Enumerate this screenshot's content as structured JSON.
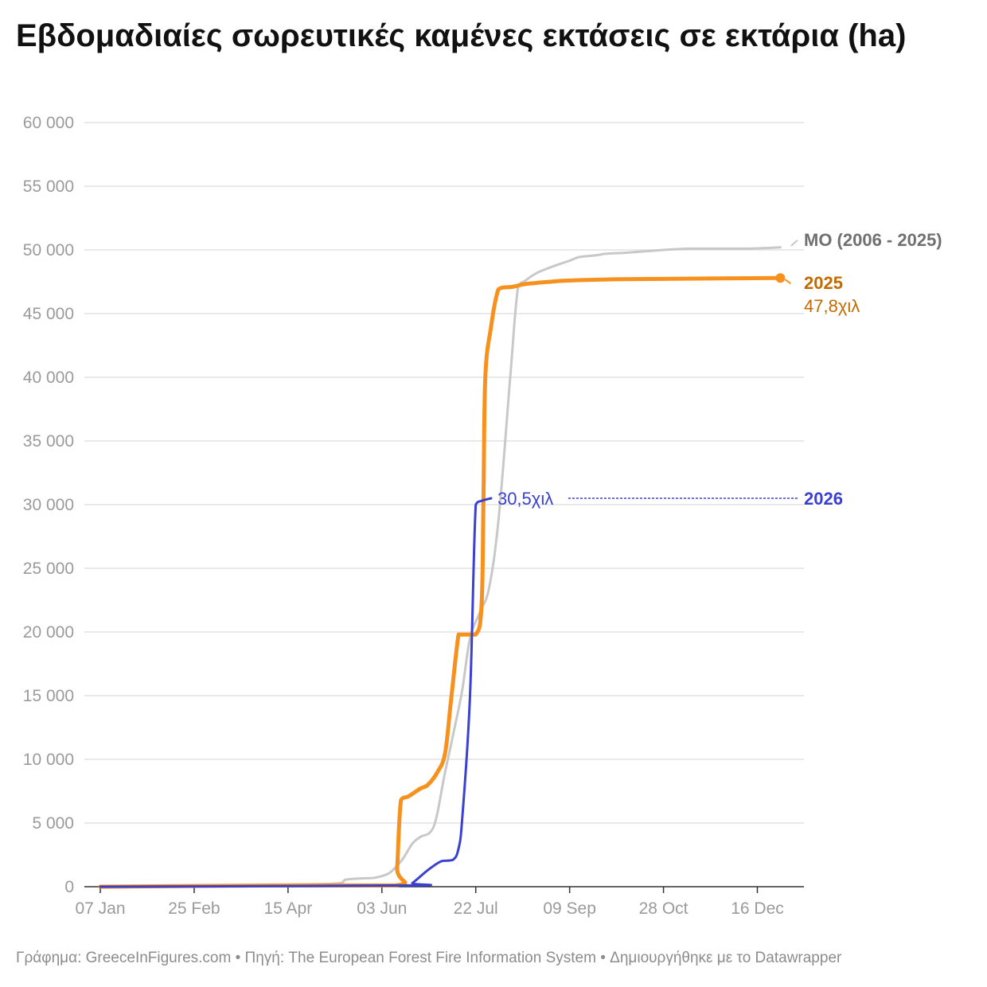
{
  "title": "Εβδομαδιαίες σωρευτικές καμένες εκτάσεις σε εκτάρια (ha)",
  "footer": "Γράφημα: GreeceInFigures.com • Πηγή: The European Forest Fire Information System • Δημιουργήθηκε με το Datawrapper",
  "colors": {
    "avg": "#c8c8c8",
    "avg_label": "#707070",
    "y2025": "#f6911e",
    "y2025_label": "#c26a00",
    "y2026": "#3a40d0",
    "grid": "#e2e2e2",
    "tick": "#9a9a9a",
    "axis": "#333333"
  },
  "chart_data": {
    "type": "line",
    "title": "Εβδομαδιαίες σωρευτικές καμένες εκτάσεις σε εκτάρια (ha)",
    "x_unit": "day of year",
    "x_ticks": [
      {
        "day": 7,
        "label": "07 Jan"
      },
      {
        "day": 56,
        "label": "25 Feb"
      },
      {
        "day": 105,
        "label": "15 Apr"
      },
      {
        "day": 154,
        "label": "03 Jun"
      },
      {
        "day": 203,
        "label": "22 Jul"
      },
      {
        "day": 252,
        "label": "09 Sep"
      },
      {
        "day": 301,
        "label": "28 Oct"
      },
      {
        "day": 350,
        "label": "16 Dec"
      }
    ],
    "y_ticks": [
      {
        "value": 0,
        "label": "0"
      },
      {
        "value": 5000,
        "label": "5 000"
      },
      {
        "value": 10000,
        "label": "10 000"
      },
      {
        "value": 15000,
        "label": "15 000"
      },
      {
        "value": 20000,
        "label": "20 000"
      },
      {
        "value": 25000,
        "label": "25 000"
      },
      {
        "value": 30000,
        "label": "30 000"
      },
      {
        "value": 35000,
        "label": "35 000"
      },
      {
        "value": 40000,
        "label": "40 000"
      },
      {
        "value": 45000,
        "label": "45 000"
      },
      {
        "value": 50000,
        "label": "50 000"
      },
      {
        "value": 55000,
        "label": "55 000"
      },
      {
        "value": 60000,
        "label": "60 000"
      }
    ],
    "xlim": [
      7,
      366
    ],
    "ylim": [
      0,
      60000
    ],
    "grid": true,
    "series": [
      {
        "name": "ΜΟ (2006 - 2025)",
        "key": "avg",
        "x": [
          7,
          60,
          100,
          130,
          135,
          143,
          150,
          157,
          161,
          165,
          170,
          174,
          181,
          187,
          192,
          196,
          200,
          205,
          210,
          215,
          221,
          225,
          229,
          235,
          245,
          251,
          256,
          260,
          267,
          271,
          283,
          301,
          314,
          326,
          345,
          362
        ],
        "y": [
          0,
          50,
          150,
          250,
          550,
          650,
          700,
          1000,
          1500,
          2200,
          3400,
          3900,
          4700,
          9000,
          12500,
          15500,
          19500,
          21500,
          23500,
          29000,
          40000,
          47000,
          47600,
          48200,
          48800,
          49100,
          49400,
          49500,
          49600,
          49700,
          49800,
          50000,
          50100,
          50100,
          50100,
          50200
        ]
      },
      {
        "name": "2025",
        "key": "y2025",
        "x": [
          7,
          100,
          161,
          162,
          164,
          168,
          174,
          178,
          183,
          187,
          190,
          194,
          196,
          203,
          206,
          207,
          208,
          211,
          214,
          216,
          222,
          228,
          234,
          242,
          252,
          280,
          362
        ],
        "y": [
          0,
          100,
          100,
          1500,
          6800,
          7100,
          7700,
          8000,
          9000,
          10500,
          14500,
          19800,
          19800,
          19800,
          22000,
          30000,
          40000,
          44000,
          46500,
          47000,
          47100,
          47300,
          47400,
          47500,
          47600,
          47700,
          47800
        ],
        "end_label": "2025",
        "end_value_label": "47,8χιλ"
      },
      {
        "name": "2026",
        "key": "y2026",
        "x": [
          7,
          166,
          170,
          178,
          185,
          191,
          194,
          196,
          200,
          203,
          206,
          211
        ],
        "y": [
          0,
          100,
          300,
          1300,
          2000,
          2100,
          3000,
          5500,
          15000,
          30000,
          30300,
          30500
        ],
        "end_label": "2026",
        "end_value_label": "30,5χιλ"
      }
    ]
  }
}
